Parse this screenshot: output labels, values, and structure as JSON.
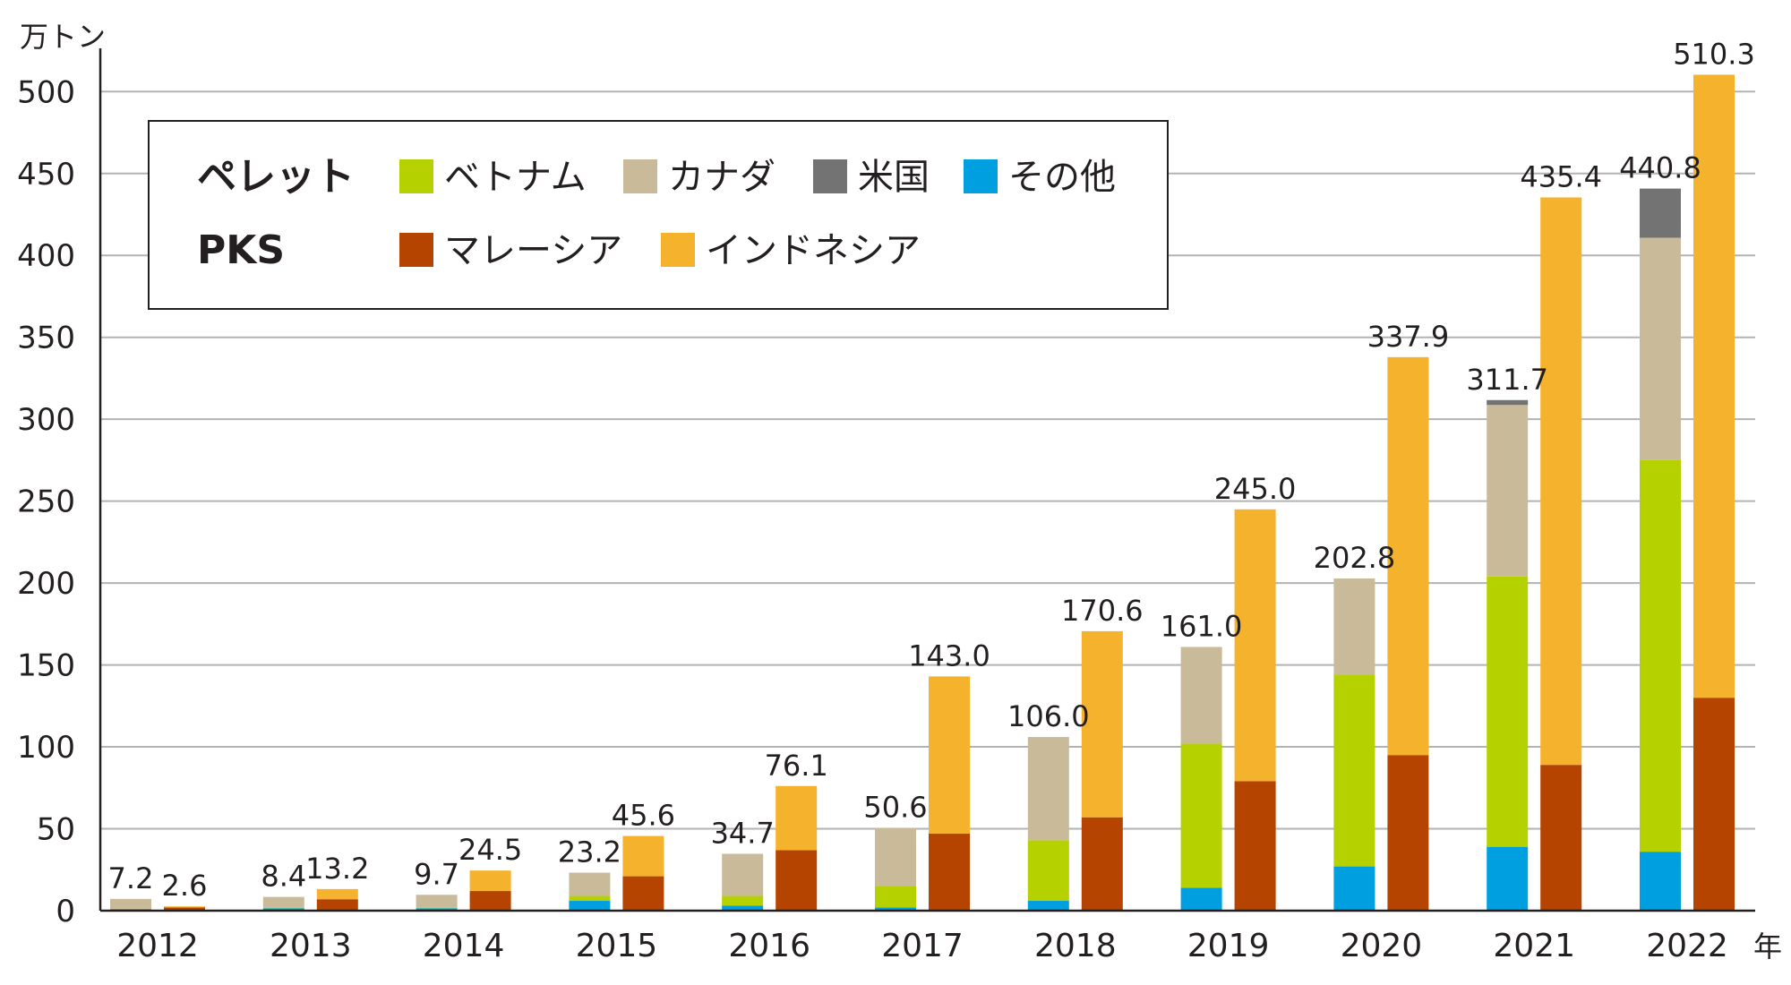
{
  "chart_data": {
    "type": "bar",
    "stacked": true,
    "grouped": true,
    "y_unit": "万トン",
    "x_unit": "年",
    "ylim": [
      0,
      510
    ],
    "yticks": [
      0,
      50,
      100,
      150,
      200,
      250,
      300,
      350,
      400,
      450,
      500
    ],
    "grid": true,
    "legend_position": "top-left",
    "categories": [
      "2012",
      "2013",
      "2014",
      "2015",
      "2016",
      "2017",
      "2018",
      "2019",
      "2020",
      "2021",
      "2022"
    ],
    "groups": [
      {
        "name": "ペレット",
        "totals": [
          "7.2",
          "8.4",
          "9.7",
          "23.2",
          "34.7",
          "50.6",
          "106.0",
          "161.0",
          "202.8",
          "311.7",
          "440.8"
        ],
        "series": [
          {
            "name": "その他",
            "color": "#00a0e0",
            "values": [
              1.0,
              1.5,
              1.5,
              6.0,
              3.0,
              2.0,
              6.0,
              14.0,
              27.0,
              39.0,
              36.0
            ]
          },
          {
            "name": "ベトナム",
            "color": "#b5d100",
            "values": [
              0.2,
              0.2,
              0.2,
              3.0,
              6.0,
              13.0,
              37.0,
              88.0,
              117.0,
              165.0,
              239.0
            ]
          },
          {
            "name": "カナダ",
            "color": "#c9bb9a",
            "values": [
              6.0,
              6.7,
              8.0,
              14.2,
              25.7,
              35.6,
              63.0,
              59.0,
              58.8,
              104.7,
              135.8
            ]
          },
          {
            "name": "米国",
            "color": "#737373",
            "values": [
              0,
              0,
              0,
              0,
              0,
              0,
              0,
              0,
              0,
              3.0,
              30.0
            ]
          }
        ]
      },
      {
        "name": "PKS",
        "totals": [
          "2.6",
          "13.2",
          "24.5",
          "45.6",
          "76.1",
          "143.0",
          "170.6",
          "245.0",
          "337.9",
          "435.4",
          "510.3"
        ],
        "series": [
          {
            "name": "マレーシア",
            "color": "#b54400",
            "values": [
              2.0,
              7.0,
              12.0,
              21.0,
              37.0,
              47.0,
              57.0,
              79.0,
              95.0,
              89.0,
              130.0
            ]
          },
          {
            "name": "インドネシア",
            "color": "#f5b22d",
            "values": [
              0.6,
              6.2,
              12.5,
              24.6,
              39.1,
              96.0,
              113.6,
              166.0,
              242.9,
              346.4,
              380.3
            ]
          }
        ]
      }
    ],
    "legend": [
      {
        "group": "ペレット",
        "items": [
          "ベトナム",
          "カナダ",
          "米国",
          "その他"
        ]
      },
      {
        "group": "PKS",
        "items": [
          "マレーシア",
          "インドネシア"
        ]
      }
    ]
  }
}
